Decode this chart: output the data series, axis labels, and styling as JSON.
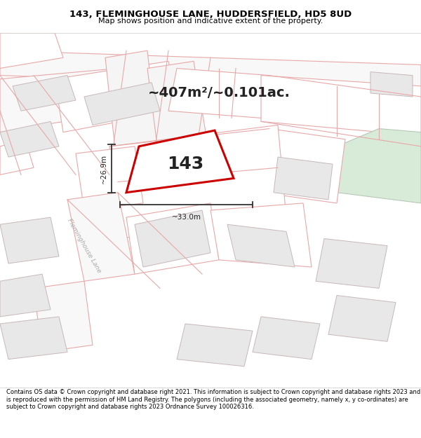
{
  "title_line1": "143, FLEMINGHOUSE LANE, HUDDERSFIELD, HD5 8UD",
  "title_line2": "Map shows position and indicative extent of the property.",
  "area_text": "~407m²/~0.101ac.",
  "property_number": "143",
  "dim_width": "~33.0m",
  "dim_height": "~26.9m",
  "footer_text": "Contains OS data © Crown copyright and database right 2021. This information is subject to Crown copyright and database rights 2023 and is reproduced with the permission of HM Land Registry. The polygons (including the associated geometry, namely x, y co-ordinates) are subject to Crown copyright and database rights 2023 Ordnance Survey 100026316.",
  "bg_color": "#ffffff",
  "building_fill": "#e8e8e8",
  "building_edge": "#c8b8b8",
  "parcel_edge": "#e8a8a8",
  "parcel_fill": "#ffffff",
  "green_fill": "#d8ead8",
  "green_edge": "#b8c8b8",
  "property_fill": "#ffffff",
  "property_edge": "#cc0000",
  "street_label": "Fleminghouse Lane",
  "street_label_color": "#aaaaaa",
  "dim_color": "#333333",
  "text_color": "#222222"
}
